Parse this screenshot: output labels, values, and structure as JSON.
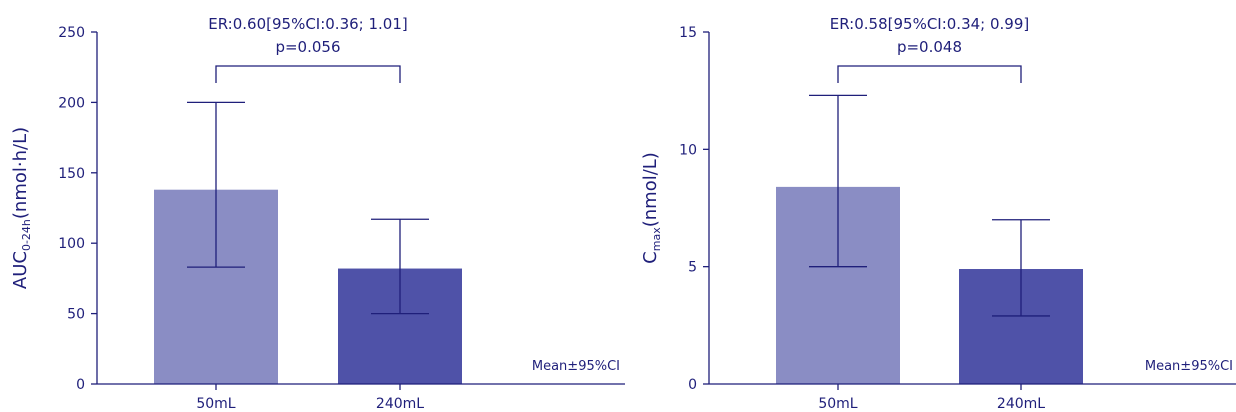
{
  "chart_data": [
    {
      "type": "bar",
      "categories": [
        "50mL",
        "240mL"
      ],
      "values": [
        138,
        82
      ],
      "ci_low": [
        83,
        50
      ],
      "ci_high": [
        200,
        117
      ],
      "bar_colors": [
        "#8a8dc4",
        "#4f52a8"
      ],
      "ylim": [
        0,
        250
      ],
      "yticks": [
        "0",
        "50",
        "100",
        "150",
        "200",
        "250"
      ],
      "ylabel_main": "AUC",
      "ylabel_sub": "0-24h",
      "ylabel_unit": "(nmol·h/L)",
      "annotation_line1": "ER:0.60[95%CI:0.36; 1.01]",
      "annotation_line2": "p=0.056",
      "note": "Mean±95%CI"
    },
    {
      "type": "bar",
      "categories": [
        "50mL",
        "240mL"
      ],
      "values": [
        8.4,
        4.9
      ],
      "ci_low": [
        5.0,
        2.9
      ],
      "ci_high": [
        12.3,
        7.0
      ],
      "bar_colors": [
        "#8a8dc4",
        "#4f52a8"
      ],
      "ylim": [
        0,
        15
      ],
      "yticks": [
        "0",
        "5",
        "10",
        "15"
      ],
      "ylabel_main": "C",
      "ylabel_sub": "max",
      "ylabel_unit": "(nmol/L)",
      "annotation_line1": "ER:0.58[95%CI:0.34; 0.99]",
      "annotation_line2": "p=0.048",
      "note": "Mean±95%CI"
    }
  ],
  "colors": {
    "axis": "#1f1f7a",
    "bar_light": "#8a8dc4",
    "bar_dark": "#4f52a8"
  }
}
